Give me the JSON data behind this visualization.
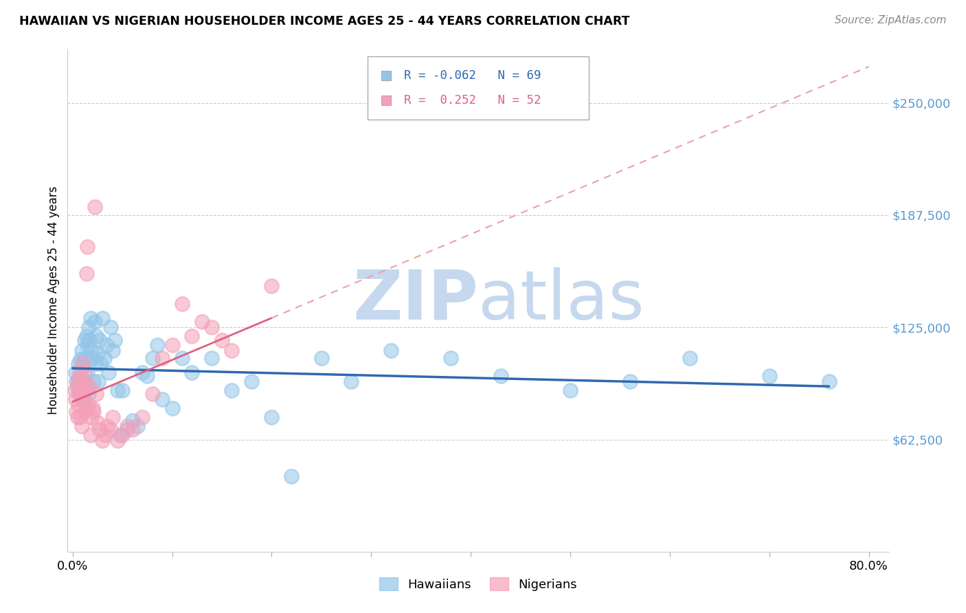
{
  "title": "HAWAIIAN VS NIGERIAN HOUSEHOLDER INCOME AGES 25 - 44 YEARS CORRELATION CHART",
  "source": "Source: ZipAtlas.com",
  "ylabel": "Householder Income Ages 25 - 44 years",
  "xlim": [
    -0.005,
    0.82
  ],
  "ylim": [
    0,
    280000
  ],
  "yticks": [
    62500,
    125000,
    187500,
    250000
  ],
  "ytick_labels": [
    "$62,500",
    "$125,000",
    "$187,500",
    "$250,000"
  ],
  "xticks": [
    0.0,
    0.1,
    0.2,
    0.3,
    0.4,
    0.5,
    0.6,
    0.7,
    0.8
  ],
  "hawaiian_R": -0.062,
  "hawaiian_N": 69,
  "nigerian_R": 0.252,
  "nigerian_N": 52,
  "hawaiian_color": "#92C5E8",
  "nigerian_color": "#F4A0B8",
  "hawaiian_line_color": "#3068B0",
  "nigerian_line_color": "#E06080",
  "nigerian_line_dashed_color": "#E8A0B0",
  "watermark_color": "#C5D8EE",
  "background_color": "#FFFFFF",
  "hawaiians_x": [
    0.003,
    0.004,
    0.005,
    0.006,
    0.007,
    0.007,
    0.008,
    0.008,
    0.009,
    0.01,
    0.01,
    0.011,
    0.012,
    0.012,
    0.013,
    0.014,
    0.014,
    0.015,
    0.015,
    0.016,
    0.016,
    0.017,
    0.018,
    0.019,
    0.02,
    0.021,
    0.022,
    0.023,
    0.024,
    0.025,
    0.026,
    0.027,
    0.028,
    0.03,
    0.032,
    0.034,
    0.036,
    0.038,
    0.04,
    0.042,
    0.045,
    0.048,
    0.05,
    0.055,
    0.06,
    0.065,
    0.07,
    0.075,
    0.08,
    0.085,
    0.09,
    0.1,
    0.11,
    0.12,
    0.14,
    0.16,
    0.18,
    0.2,
    0.22,
    0.25,
    0.28,
    0.32,
    0.38,
    0.43,
    0.5,
    0.56,
    0.62,
    0.7,
    0.76
  ],
  "hawaiians_y": [
    100000,
    95000,
    92000,
    105000,
    88000,
    98000,
    107000,
    95000,
    112000,
    90000,
    103000,
    85000,
    118000,
    95000,
    108000,
    92000,
    120000,
    100000,
    115000,
    88000,
    125000,
    118000,
    130000,
    112000,
    108000,
    95000,
    128000,
    105000,
    120000,
    110000,
    95000,
    118000,
    105000,
    130000,
    108000,
    115000,
    100000,
    125000,
    112000,
    118000,
    90000,
    65000,
    90000,
    68000,
    73000,
    70000,
    100000,
    98000,
    108000,
    115000,
    85000,
    80000,
    108000,
    100000,
    108000,
    90000,
    95000,
    75000,
    42000,
    108000,
    95000,
    112000,
    108000,
    98000,
    90000,
    95000,
    108000,
    98000,
    95000
  ],
  "nigerians_x": [
    0.002,
    0.003,
    0.004,
    0.005,
    0.005,
    0.006,
    0.006,
    0.007,
    0.007,
    0.008,
    0.008,
    0.009,
    0.009,
    0.01,
    0.01,
    0.011,
    0.012,
    0.012,
    0.013,
    0.014,
    0.014,
    0.015,
    0.016,
    0.017,
    0.018,
    0.019,
    0.02,
    0.021,
    0.022,
    0.024,
    0.025,
    0.027,
    0.03,
    0.033,
    0.035,
    0.038,
    0.04,
    0.045,
    0.05,
    0.055,
    0.06,
    0.07,
    0.08,
    0.09,
    0.1,
    0.11,
    0.12,
    0.13,
    0.14,
    0.15,
    0.16,
    0.2
  ],
  "nigerians_y": [
    90000,
    85000,
    78000,
    95000,
    75000,
    90000,
    82000,
    100000,
    88000,
    95000,
    75000,
    88000,
    70000,
    105000,
    85000,
    92000,
    78000,
    100000,
    92000,
    155000,
    80000,
    170000,
    82000,
    92000,
    65000,
    75000,
    80000,
    78000,
    192000,
    88000,
    72000,
    68000,
    62000,
    65000,
    70000,
    68000,
    75000,
    62000,
    65000,
    70000,
    68000,
    75000,
    88000,
    108000,
    115000,
    138000,
    120000,
    128000,
    125000,
    118000,
    112000,
    148000
  ]
}
